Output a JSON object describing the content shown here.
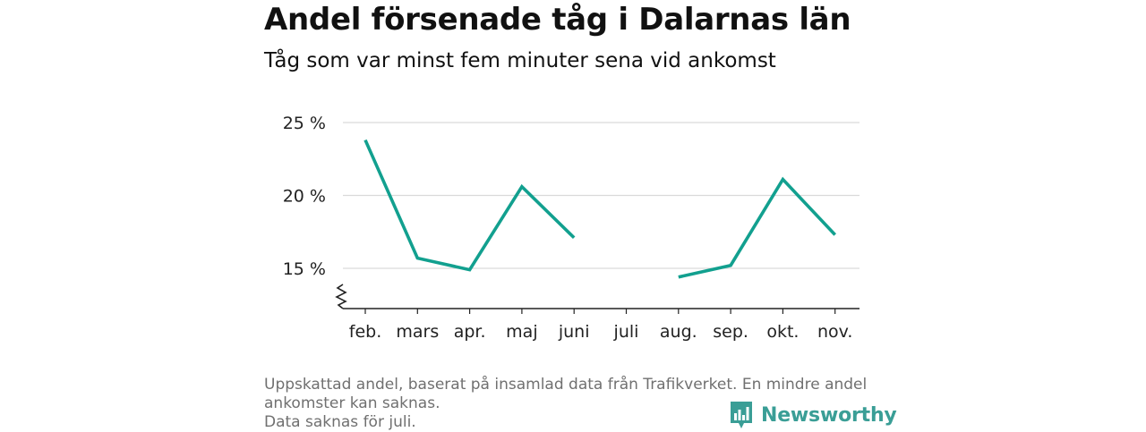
{
  "header": {
    "title": "Andel försenade tåg i Dalarnas län",
    "subtitle": "Tåg som var minst fem minuter sena vid ankomst"
  },
  "footer": {
    "note_lines": [
      "Uppskattad andel, baserat på insamlad data från Trafikverket. En mindre andel",
      "ankomster kan saknas.",
      "Data saknas för juli."
    ],
    "brand": "Newsworthy"
  },
  "colors": {
    "line": "#12a08f",
    "grid": "#d9d9d9",
    "axis": "#222222",
    "brand": "#3a9e96"
  },
  "chart_data": {
    "type": "line",
    "categories": [
      "feb.",
      "mars",
      "apr.",
      "maj",
      "juni",
      "juli",
      "aug.",
      "sep.",
      "okt.",
      "nov."
    ],
    "series": [
      {
        "values": [
          23.8,
          15.7,
          14.9,
          20.6,
          17.1,
          null,
          14.4,
          15.2,
          21.1,
          17.3
        ]
      }
    ],
    "yticks": [
      15,
      20,
      25
    ],
    "ytick_labels": [
      "15 %",
      "20 %",
      "25 %"
    ],
    "ylim": [
      12.4,
      25
    ],
    "y_axis_break": true,
    "grid": true,
    "legend": "none"
  }
}
